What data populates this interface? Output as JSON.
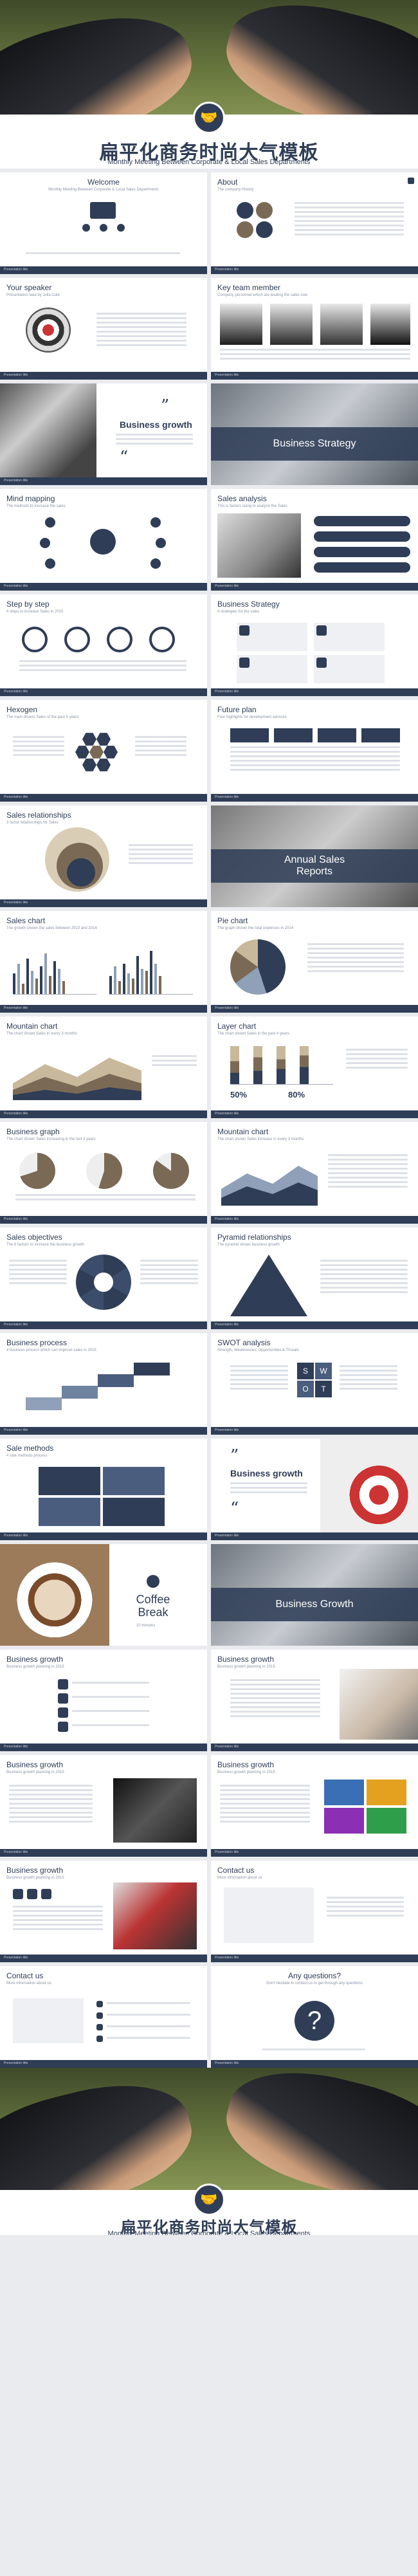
{
  "cover": {
    "title": "扁平化商务时尚大气模板",
    "subtitle": "Monthly Meeting Between Corporate & Local Sales Departments",
    "logo_icon": "handshake-icon"
  },
  "footer": {
    "title": "扁平化商务时尚大气模板",
    "subtitle": "Monthly Meeting Between Corporate & Local Sales Departments",
    "logo_icon": "handshake-icon"
  },
  "bar_text": "Presentation title",
  "brand_color": "#2f3d56",
  "slides": [
    {
      "title": "Welcome",
      "subtitle": "Monthly Meeting Between Corporate & Local Sales Departments"
    },
    {
      "title": "About",
      "subtitle": "The company History"
    },
    {
      "title": "Your speaker",
      "subtitle": "Presentation lead by Julia Cole"
    },
    {
      "title": "Key team member",
      "subtitle": "Company personnel which are leading the sales now"
    },
    {
      "title": "Business growth",
      "subtitle": ""
    },
    {
      "title": "Business Strategy",
      "subtitle": ""
    },
    {
      "title": "Mind mapping",
      "subtitle": "The methods to increase the sales"
    },
    {
      "title": "Sales analysis",
      "subtitle": "This is factors using to analyze the Sales"
    },
    {
      "title": "Step by step",
      "subtitle": "4 steps to increase Sales in 2015"
    },
    {
      "title": "Business Strategy",
      "subtitle": "4 strategies for the sales"
    },
    {
      "title": "Hexogen",
      "subtitle": "The main drivers Sales of the past 5 years"
    },
    {
      "title": "Future plan",
      "subtitle": "Four highlights for development services"
    },
    {
      "title": "Sales relationships",
      "subtitle": "3 factor relationships for Sales"
    },
    {
      "title": "Annual Sales Reports",
      "subtitle": ""
    },
    {
      "title": "Sales chart",
      "subtitle": "The growth shown the sales between 2013 and 2014"
    },
    {
      "title": "Pie chart",
      "subtitle": "The graph shown the total expenses in 2014"
    },
    {
      "title": "Mountain chart",
      "subtitle": "The chart shown Sales in every 3 months"
    },
    {
      "title": "Layer chart",
      "subtitle": "The chart shown Sales in the past 4 years"
    },
    {
      "title": "Business graph",
      "subtitle": "The chart shown Sales increasing in the last 3 years"
    },
    {
      "title": "Mountain chart",
      "subtitle": "The chart shown Sales increase in every 3 months"
    },
    {
      "title": "Sales objectives",
      "subtitle": "The 6 factors to increase the business growth"
    },
    {
      "title": "Pyramid relationships",
      "subtitle": "The pyramid shows business growth"
    },
    {
      "title": "Business process",
      "subtitle": "4 business process which can improve sales in 2015"
    },
    {
      "title": "SWOT analysis",
      "subtitle": "Strength, Weaknesses, Opportunities & Threats"
    },
    {
      "title": "Sale methods",
      "subtitle": "4 sale methods process"
    },
    {
      "title": "Business growth",
      "subtitle": ""
    },
    {
      "title": "Coffee Break",
      "subtitle": "10 minutes"
    },
    {
      "title": "Business Growth",
      "subtitle": ""
    },
    {
      "title": "Business growth",
      "subtitle": "Business growth planning in 2015"
    },
    {
      "title": "Business growth",
      "subtitle": "Business growth planning in 2015"
    },
    {
      "title": "Business growth",
      "subtitle": "Business growth planning in 2015"
    },
    {
      "title": "Business growth",
      "subtitle": "Business growth planning in 2015"
    },
    {
      "title": "Business growth",
      "subtitle": "Business growth planning in 2015"
    },
    {
      "title": "Contact us",
      "subtitle": "More information about us"
    },
    {
      "title": "Contact us",
      "subtitle": "More information about us"
    },
    {
      "title": "Any questions?",
      "subtitle": "Don't hesitate to contact us to get through any questions"
    }
  ],
  "labels": {
    "layer_pct_a": "50%",
    "layer_pct_b": "80%",
    "swot": [
      "S",
      "W",
      "O",
      "T"
    ],
    "question_mark": "?",
    "quote_open": "”",
    "quote_close": "“"
  }
}
